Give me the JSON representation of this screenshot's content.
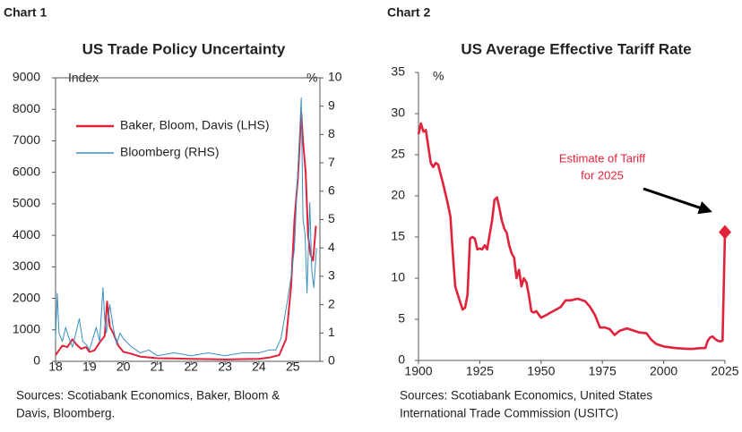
{
  "chart_data": [
    {
      "type": "line",
      "label": "Chart 1",
      "title": "US Trade Policy Uncertainty",
      "ylabel": "Index",
      "y2label": "%",
      "xlim": [
        18,
        25.8
      ],
      "xticks": [
        18,
        19,
        20,
        21,
        22,
        23,
        24,
        25
      ],
      "ylim": [
        0,
        9000
      ],
      "yticks": [
        0,
        1000,
        2000,
        3000,
        4000,
        5000,
        6000,
        7000,
        8000,
        9000
      ],
      "y2lim": [
        0,
        10
      ],
      "y2ticks": [
        0,
        1,
        2,
        3,
        4,
        5,
        6,
        7,
        8,
        9,
        10
      ],
      "series": [
        {
          "name": "Baker, Bloom, Davis (LHS)",
          "color": "#e0223a",
          "x": [
            18,
            18.1,
            18.2,
            18.35,
            18.5,
            18.6,
            18.75,
            18.9,
            19.0,
            19.15,
            19.3,
            19.45,
            19.52,
            19.6,
            19.7,
            19.85,
            20.0,
            20.2,
            20.5,
            20.8,
            21,
            21.5,
            22,
            22.5,
            23,
            23.5,
            24,
            24.3,
            24.6,
            24.8,
            24.95,
            25.05,
            25.15,
            25.25,
            25.3,
            25.38,
            25.45,
            25.52,
            25.6,
            25.68
          ],
          "values": [
            200,
            350,
            500,
            450,
            700,
            550,
            400,
            450,
            300,
            350,
            600,
            800,
            1900,
            1100,
            900,
            500,
            300,
            250,
            150,
            120,
            100,
            90,
            80,
            70,
            60,
            70,
            80,
            120,
            200,
            700,
            2400,
            4500,
            5800,
            7900,
            7000,
            6000,
            4000,
            3400,
            3200,
            4300
          ],
          "axis": "y"
        },
        {
          "name": "Bloomberg (RHS)",
          "color": "#3a8fc0",
          "x": [
            18,
            18.05,
            18.1,
            18.2,
            18.3,
            18.4,
            18.5,
            18.6,
            18.7,
            18.8,
            18.9,
            19.0,
            19.1,
            19.2,
            19.3,
            19.4,
            19.45,
            19.5,
            19.6,
            19.7,
            19.8,
            19.9,
            20.0,
            20.25,
            20.5,
            20.75,
            21,
            21.5,
            22,
            22.5,
            23,
            23.5,
            24,
            24.3,
            24.5,
            24.65,
            24.75,
            24.85,
            24.95,
            25.05,
            25.12,
            25.2,
            25.25,
            25.3,
            25.36,
            25.42,
            25.5,
            25.56,
            25.62,
            25.7
          ],
          "values": [
            0.8,
            2.4,
            1.0,
            0.7,
            1.2,
            0.8,
            0.5,
            1.0,
            1.5,
            0.7,
            0.6,
            0.4,
            0.8,
            1.2,
            0.7,
            2.6,
            1.5,
            1.0,
            2.0,
            1.2,
            0.6,
            1.0,
            0.8,
            0.5,
            0.3,
            0.4,
            0.2,
            0.3,
            0.2,
            0.3,
            0.2,
            0.3,
            0.3,
            0.4,
            0.4,
            0.8,
            1.5,
            2.2,
            3.0,
            4.0,
            6.0,
            8.0,
            9.3,
            5.0,
            4.5,
            2.4,
            5.6,
            3.2,
            2.6,
            4.0
          ],
          "axis": "y2"
        }
      ],
      "legend": "upper left",
      "sources": [
        "Sources: Scotiabank Economics, Baker, Bloom &",
        "Davis, Bloomberg."
      ]
    },
    {
      "type": "line",
      "label": "Chart 2",
      "title": "US Average Effective Tariff Rate",
      "ylabel": "%",
      "xlim": [
        1900,
        2025
      ],
      "xticks": [
        1900,
        1925,
        1950,
        1975,
        2000,
        2025
      ],
      "ylim": [
        0,
        35
      ],
      "yticks": [
        0,
        5,
        10,
        15,
        20,
        25,
        30,
        35
      ],
      "series": [
        {
          "color": "#e0223a",
          "x": [
            1900,
            1901,
            1902,
            1903,
            1905,
            1906,
            1907,
            1908,
            1910,
            1912,
            1913,
            1914,
            1915,
            1916,
            1918,
            1919,
            1920,
            1921,
            1922,
            1923,
            1924,
            1925,
            1926,
            1927,
            1928,
            1930,
            1931,
            1932,
            1933,
            1934,
            1935,
            1936,
            1937,
            1938,
            1939,
            1940,
            1941,
            1942,
            1943,
            1944,
            1945,
            1946,
            1947,
            1948,
            1950,
            1952,
            1955,
            1958,
            1960,
            1962,
            1965,
            1968,
            1970,
            1972,
            1974,
            1976,
            1978,
            1980,
            1982,
            1985,
            1988,
            1990,
            1993,
            1995,
            1997,
            2000,
            2005,
            2010,
            2012,
            2015,
            2017,
            2018,
            2019,
            2020,
            2021,
            2022,
            2023,
            2024,
            2025
          ],
          "values": [
            27.5,
            28.8,
            27.8,
            28,
            24,
            23.5,
            24,
            23.8,
            21.5,
            19,
            17.5,
            13,
            9,
            8,
            6.2,
            6.4,
            8,
            14.8,
            15,
            14.8,
            13.5,
            13.6,
            13.5,
            14,
            13.5,
            17,
            19.5,
            19.8,
            18.5,
            17,
            16,
            15.5,
            14,
            13,
            12.5,
            10,
            11,
            9,
            10,
            9.5,
            8,
            6,
            5.8,
            6,
            5.2,
            5.5,
            6,
            6.5,
            7.3,
            7.3,
            7.5,
            7.2,
            6.5,
            5.5,
            4,
            4,
            3.8,
            3.1,
            3.6,
            3.9,
            3.6,
            3.4,
            3.3,
            2.5,
            2.0,
            1.7,
            1.5,
            1.4,
            1.4,
            1.5,
            1.5,
            2.4,
            2.8,
            2.9,
            2.6,
            2.4,
            2.3,
            2.4,
            15.6
          ]
        }
      ],
      "highlight_last": true,
      "annotation": [
        "Estimate of Tariff",
        "for 2025"
      ],
      "sources": [
        "Sources: Scotiabank Economics, United States",
        "International Trade Commission (USITC)"
      ]
    }
  ]
}
